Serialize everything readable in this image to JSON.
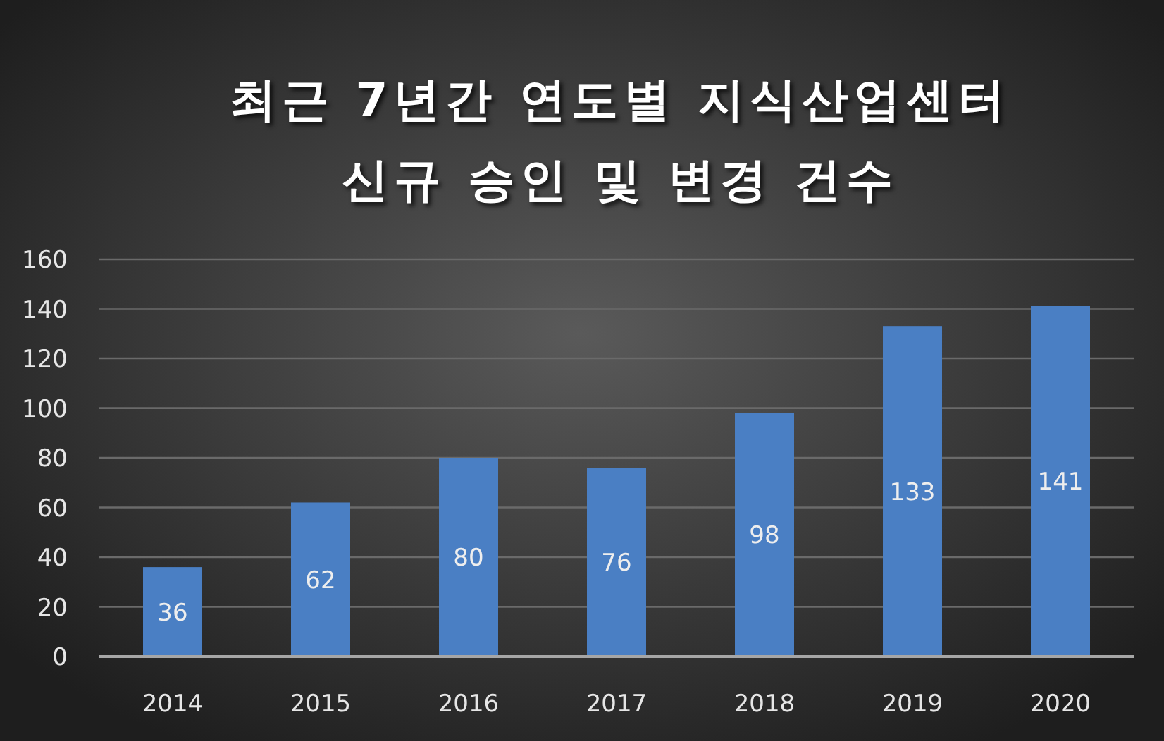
{
  "chart_data": {
    "type": "bar",
    "title": "최근 7년간 연도별 지식산업센터\n신규 승인 및 변경 건수",
    "categories": [
      "2014",
      "2015",
      "2016",
      "2017",
      "2018",
      "2019",
      "2020"
    ],
    "values": [
      36,
      62,
      80,
      76,
      98,
      133,
      141
    ],
    "color": "#4a7fc4",
    "ylim": [
      0,
      160
    ],
    "yticks": [
      0,
      20,
      40,
      60,
      80,
      100,
      120,
      140,
      160
    ],
    "grid": "y",
    "data_labels": true
  }
}
